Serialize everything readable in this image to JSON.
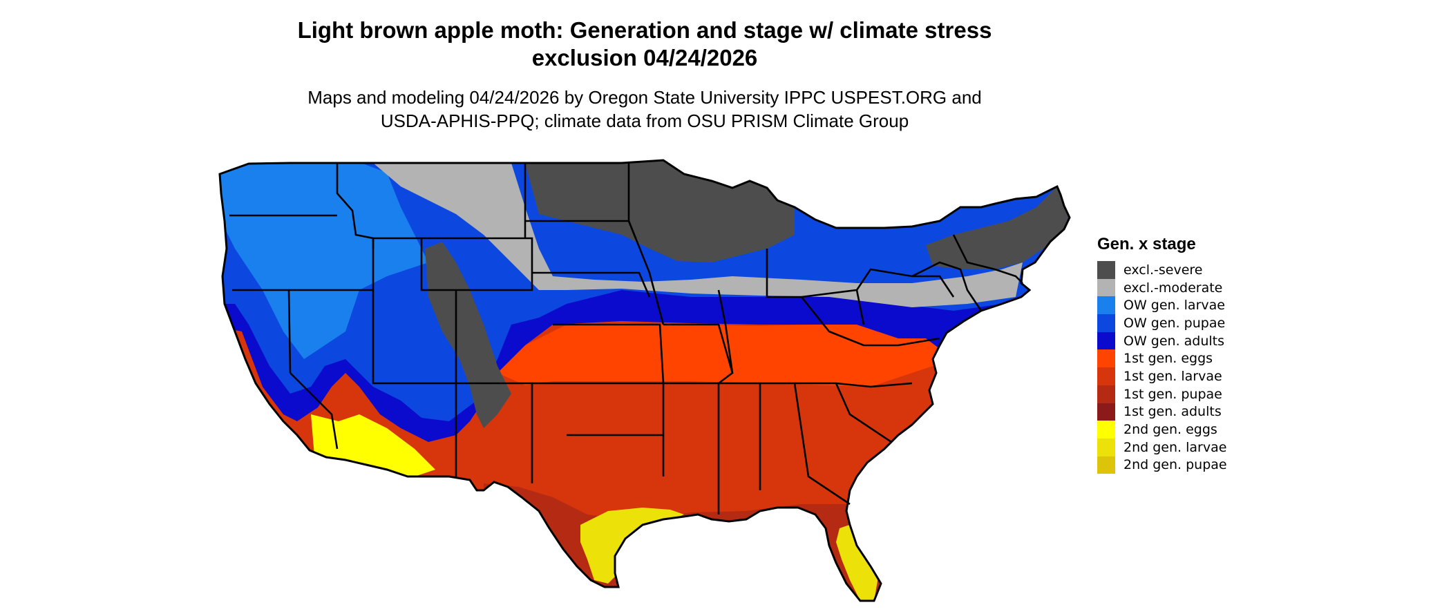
{
  "title": {
    "line1": "Light brown apple moth: Generation and stage w/ climate stress",
    "line2": "exclusion 04/24/2026"
  },
  "subtitle": {
    "line1": "Maps and modeling 04/24/2026 by Oregon State University IPPC USPEST.ORG and",
    "line2": "USDA-APHIS-PPQ; climate data from OSU PRISM Climate Group"
  },
  "legend": {
    "title": "Gen. x stage",
    "items": [
      {
        "label": "excl.-severe",
        "color": "#4d4d4d"
      },
      {
        "label": "excl.-moderate",
        "color": "#b3b3b3"
      },
      {
        "label": "OW gen. larvae",
        "color": "#1a80ee"
      },
      {
        "label": "OW gen. pupae",
        "color": "#0c48e0"
      },
      {
        "label": "OW gen. adults",
        "color": "#0a0bcc"
      },
      {
        "label": "1st gen. eggs",
        "color": "#ff4400"
      },
      {
        "label": "1st gen. larvae",
        "color": "#d7350b"
      },
      {
        "label": "1st gen. pupae",
        "color": "#b52a13"
      },
      {
        "label": "1st gen. adults",
        "color": "#8c1a1a"
      },
      {
        "label": "2nd gen. eggs",
        "color": "#ffff00"
      },
      {
        "label": "2nd gen. larvae",
        "color": "#ede10a"
      },
      {
        "label": "2nd gen. pupae",
        "color": "#dcc40a"
      }
    ]
  }
}
